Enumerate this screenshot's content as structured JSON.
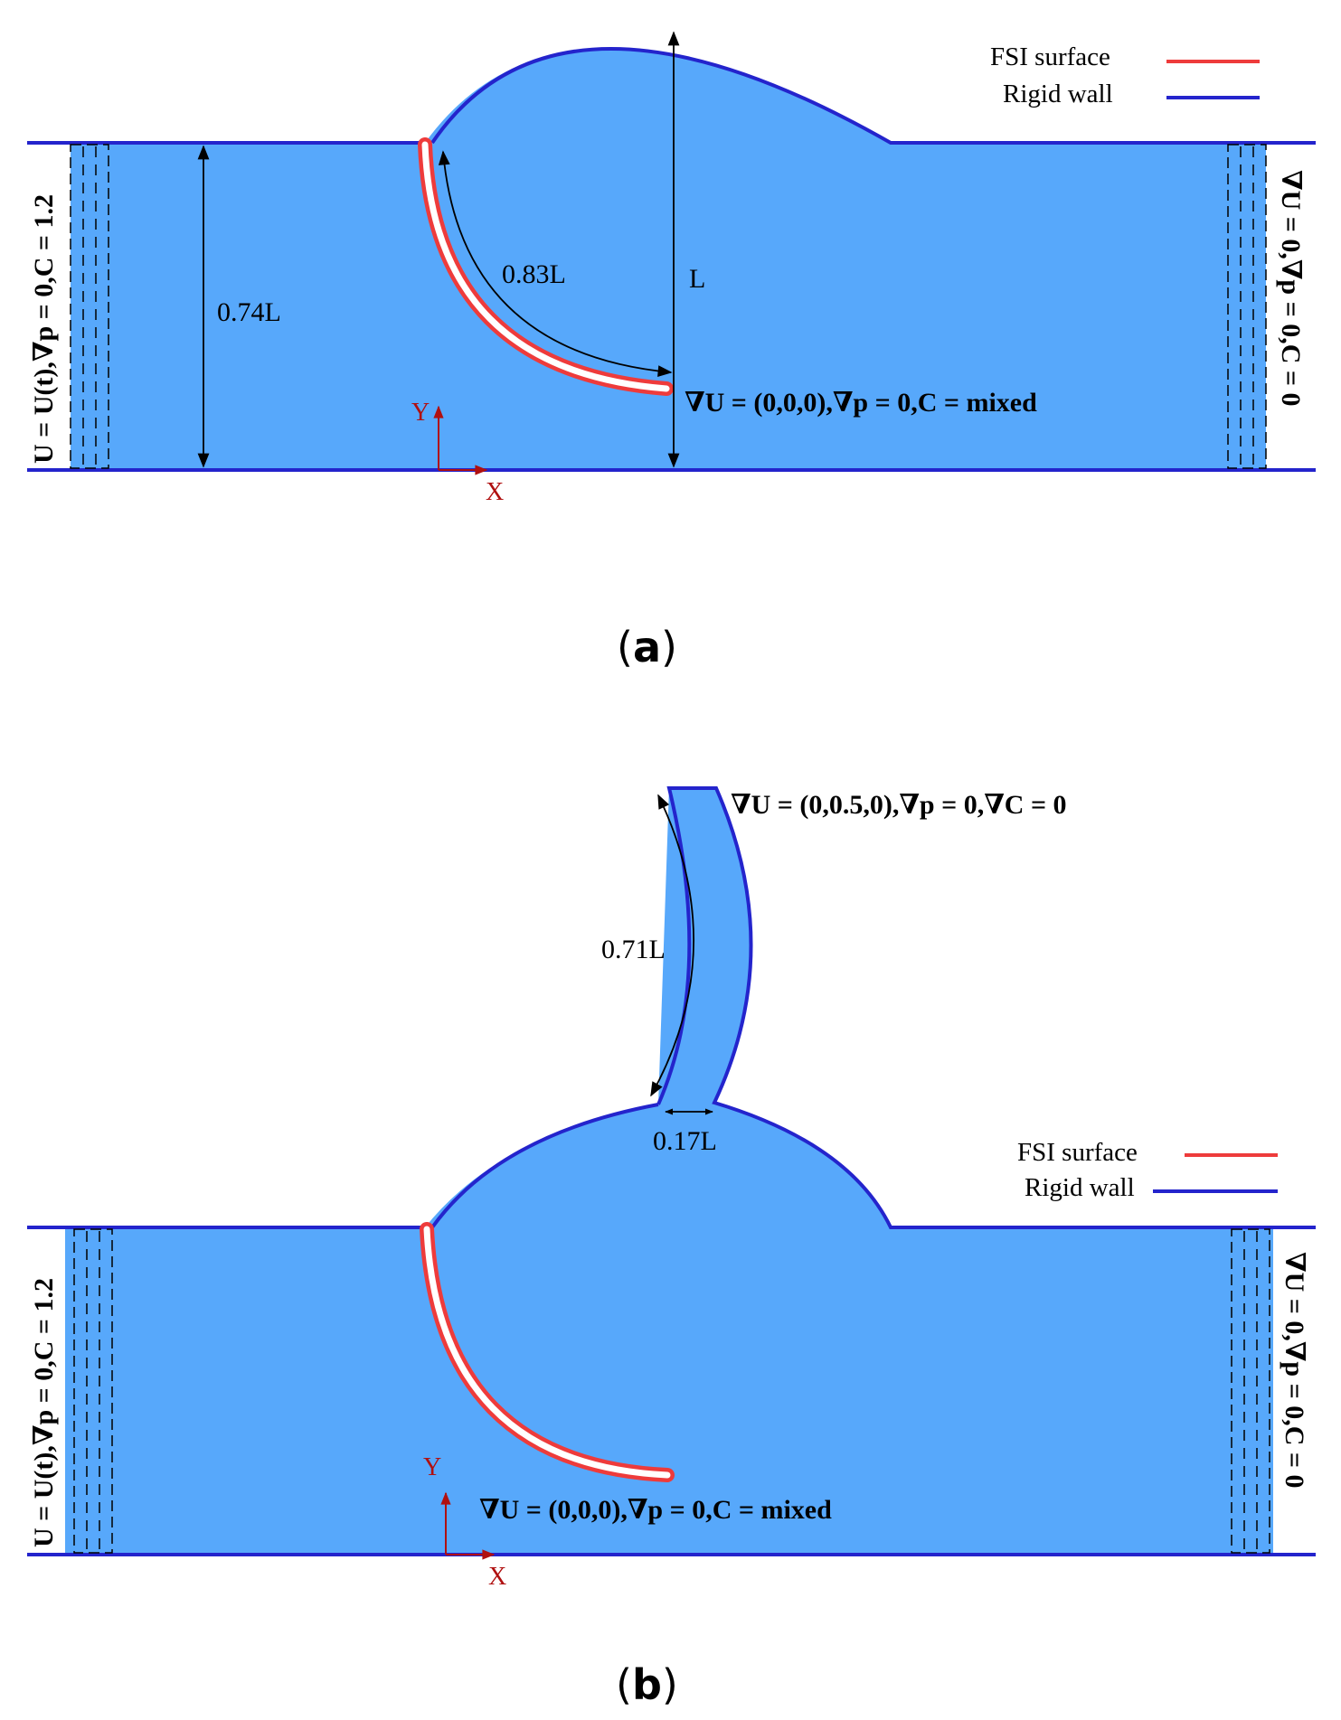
{
  "colors": {
    "fluid": "#57a8fb",
    "rigid_wall": "#2424cc",
    "fsi_surface": "#ee3b3b",
    "axis_arrow": "#b01010",
    "text": "#000000"
  },
  "panel_a": {
    "label_open": "(",
    "label_letter": "a",
    "label_close": ")",
    "legend": {
      "fsi": "FSI surface",
      "rigid": "Rigid wall"
    },
    "bc_inlet": "U = U(t),∇p = 0,C = 1.2",
    "bc_outlet": "∇U = 0,∇p = 0,C = 0",
    "bc_leaflet": "∇U = (0,0,0),∇p = 0,C = mixed",
    "dim_height": "0.74L",
    "dim_leaflet": "0.83L",
    "dim_sinus": "L",
    "axis_x": "X",
    "axis_y": "Y"
  },
  "panel_b": {
    "label_open": "(",
    "label_letter": "b",
    "label_close": ")",
    "legend": {
      "fsi": "FSI surface",
      "rigid": "Rigid wall"
    },
    "bc_inlet": "U = U(t),∇p = 0,C = 1.2",
    "bc_outlet": "∇U = 0,∇p = 0,C = 0",
    "bc_leaflet": "∇U = (0,0,0),∇p = 0,C = mixed",
    "bc_branch": "∇U = (0,0.5,0),∇p = 0,∇C = 0",
    "dim_branch_length": "0.71L",
    "dim_branch_width": "0.17L",
    "axis_x": "X",
    "axis_y": "Y"
  }
}
